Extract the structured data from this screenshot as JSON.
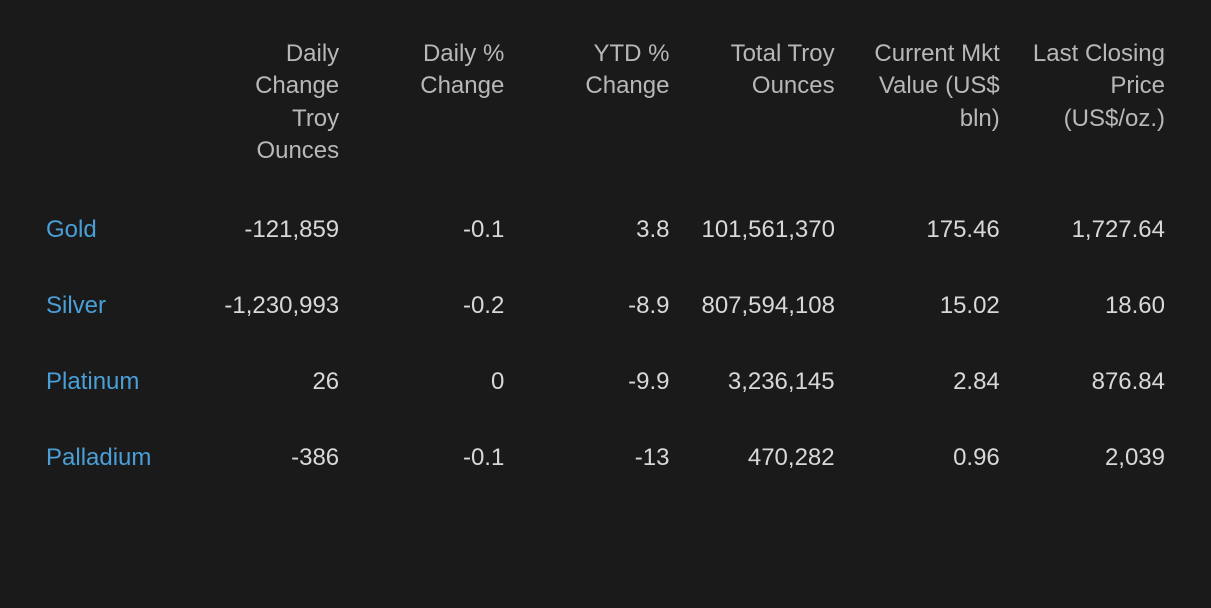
{
  "table": {
    "type": "table",
    "background_color": "#1a1a1a",
    "header_text_color": "#b8b8b8",
    "body_text_color": "#d8d8d8",
    "link_color": "#4a9fd8",
    "font_size": 24,
    "columns": [
      {
        "label": "",
        "align": "left",
        "width": 160
      },
      {
        "label": "Daily Change Troy Ounces",
        "align": "right"
      },
      {
        "label": "Daily % Change",
        "align": "right"
      },
      {
        "label": "YTD % Change",
        "align": "right"
      },
      {
        "label": "Total Troy Ounces",
        "align": "right"
      },
      {
        "label": "Current Mkt Value (US$ bln)",
        "align": "right"
      },
      {
        "label": "Last Closing Price (US$/oz.)",
        "align": "right"
      }
    ],
    "rows": [
      {
        "name": "Gold",
        "daily_change_oz": "-121,859",
        "daily_pct_change": "-0.1",
        "ytd_pct_change": "3.8",
        "total_troy_oz": "101,561,370",
        "mkt_value_bln": "175.46",
        "last_close": "1,727.64"
      },
      {
        "name": "Silver",
        "daily_change_oz": "-1,230,993",
        "daily_pct_change": "-0.2",
        "ytd_pct_change": "-8.9",
        "total_troy_oz": "807,594,108",
        "mkt_value_bln": "15.02",
        "last_close": "18.60"
      },
      {
        "name": "Platinum",
        "daily_change_oz": "26",
        "daily_pct_change": "0",
        "ytd_pct_change": "-9.9",
        "total_troy_oz": "3,236,145",
        "mkt_value_bln": "2.84",
        "last_close": "876.84"
      },
      {
        "name": "Palladium",
        "daily_change_oz": "-386",
        "daily_pct_change": "-0.1",
        "ytd_pct_change": "-13",
        "total_troy_oz": "470,282",
        "mkt_value_bln": "0.96",
        "last_close": "2,039"
      }
    ]
  }
}
